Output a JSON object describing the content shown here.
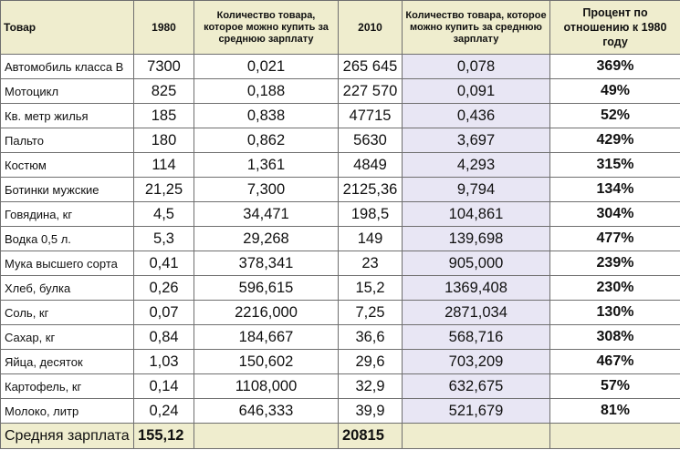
{
  "headers": {
    "product": "Товар",
    "year1": "1980",
    "qty1": "Количество товара, которое можно купить за среднюю зарплату",
    "year2": "2010",
    "qty2": "Количество товара, которое можно купить за среднюю зарплату",
    "percent": "Процент по отношению к 1980 году"
  },
  "rows": [
    {
      "name": "Автомобиль класса В",
      "p1980": "7300",
      "q1980": "0,021",
      "p2010": "265 645",
      "q2010": "0,078",
      "pct": "369%"
    },
    {
      "name": "Мотоцикл",
      "p1980": "825",
      "q1980": "0,188",
      "p2010": "227 570",
      "q2010": "0,091",
      "pct": "49%"
    },
    {
      "name": "Кв. метр жилья",
      "p1980": "185",
      "q1980": "0,838",
      "p2010": "47715",
      "q2010": "0,436",
      "pct": "52%"
    },
    {
      "name": "Пальто",
      "p1980": "180",
      "q1980": "0,862",
      "p2010": "5630",
      "q2010": "3,697",
      "pct": "429%"
    },
    {
      "name": "Костюм",
      "p1980": "114",
      "q1980": "1,361",
      "p2010": "4849",
      "q2010": "4,293",
      "pct": "315%"
    },
    {
      "name": "Ботинки мужские",
      "p1980": "21,25",
      "q1980": "7,300",
      "p2010": "2125,36",
      "q2010": "9,794",
      "pct": "134%"
    },
    {
      "name": "Говядина, кг",
      "p1980": "4,5",
      "q1980": "34,471",
      "p2010": "198,5",
      "q2010": "104,861",
      "pct": "304%"
    },
    {
      "name": "Водка 0,5 л.",
      "p1980": "5,3",
      "q1980": "29,268",
      "p2010": "149",
      "q2010": "139,698",
      "pct": "477%"
    },
    {
      "name": "Мука высшего сорта",
      "p1980": "0,41",
      "q1980": "378,341",
      "p2010": "23",
      "q2010": "905,000",
      "pct": "239%"
    },
    {
      "name": "Хлеб, булка",
      "p1980": "0,26",
      "q1980": "596,615",
      "p2010": "15,2",
      "q2010": "1369,408",
      "pct": "230%"
    },
    {
      "name": "Соль, кг",
      "p1980": "0,07",
      "q1980": "2216,000",
      "p2010": "7,25",
      "q2010": "2871,034",
      "pct": "130%"
    },
    {
      "name": "Сахар, кг",
      "p1980": "0,84",
      "q1980": "184,667",
      "p2010": "36,6",
      "q2010": "568,716",
      "pct": "308%"
    },
    {
      "name": "Яйца, десяток",
      "p1980": "1,03",
      "q1980": "150,602",
      "p2010": "29,6",
      "q2010": "703,209",
      "pct": "467%"
    },
    {
      "name": "Картофель, кг",
      "p1980": "0,14",
      "q1980": "1108,000",
      "p2010": "32,9",
      "q2010": "632,675",
      "pct": "57%"
    },
    {
      "name": "Молоко, литр",
      "p1980": "0,24",
      "q1980": "646,333",
      "p2010": "39,9",
      "q2010": "521,679",
      "pct": "81%"
    }
  ],
  "salary": {
    "label": "Средняя зарплата",
    "s1980": "155,12",
    "s2010": "20815"
  }
}
